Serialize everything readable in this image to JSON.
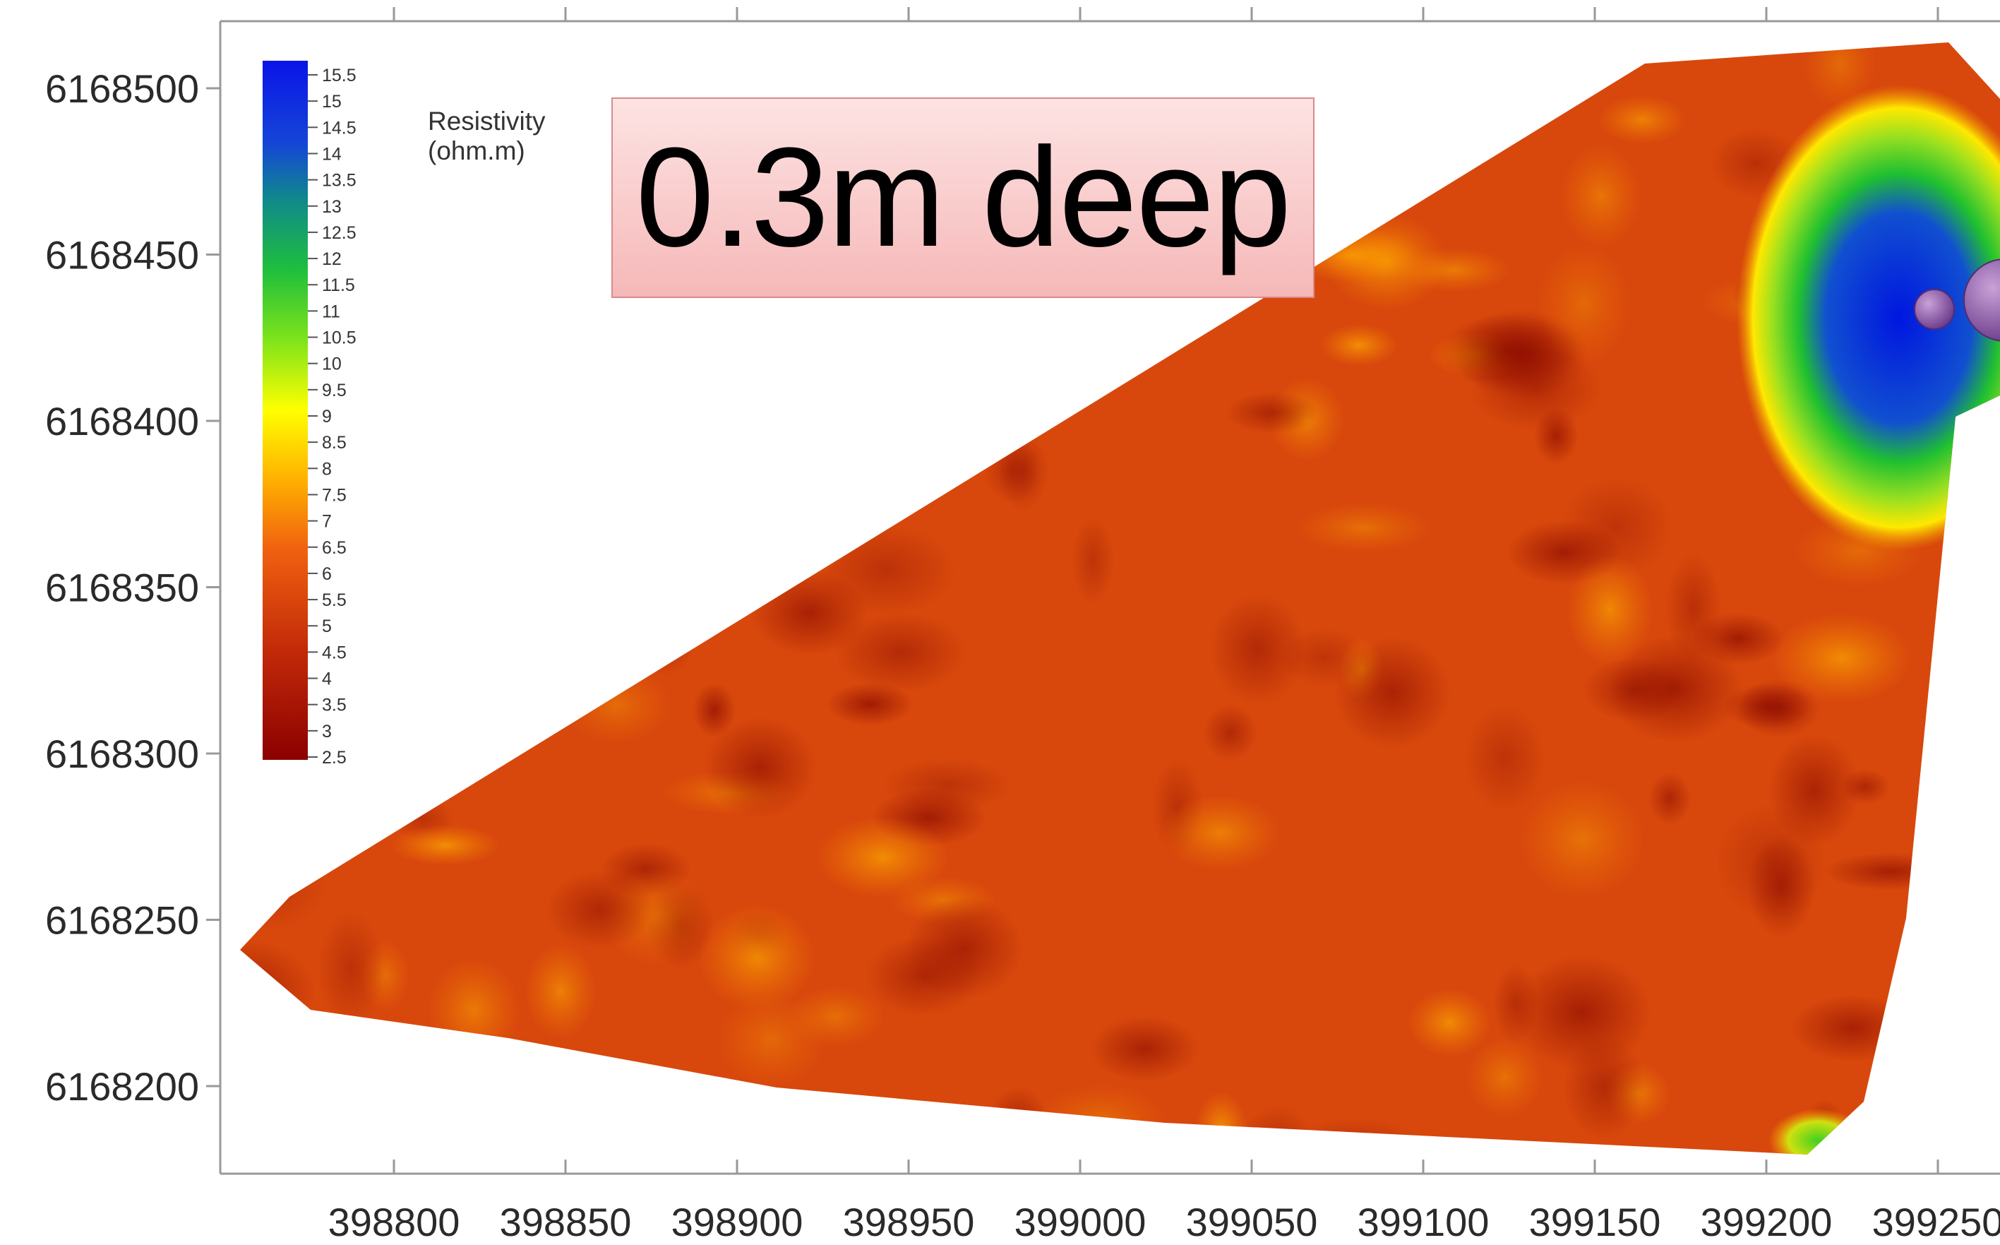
{
  "chart_data": {
    "type": "heatmap",
    "title": "0.3m deep",
    "legend_title": "Resistivity (ohm.m)",
    "legend_placement": "top-left",
    "colorbar_ticks": [
      "15.5",
      "15",
      "14.5",
      "14",
      "13.5",
      "13",
      "12.5",
      "12",
      "11.5",
      "11",
      "10.5",
      "10",
      "9.5",
      "9",
      "8.5",
      "8",
      "7.5",
      "7",
      "6.5",
      "6",
      "5.5",
      "5",
      "4.5",
      "4",
      "3.5",
      "3",
      "2.5"
    ],
    "colorbar_range": [
      2.5,
      15.5
    ],
    "x_ticks": [
      "398800",
      "398850",
      "398900",
      "398950",
      "399000",
      "399050",
      "399100",
      "399150",
      "399200",
      "399250"
    ],
    "y_ticks": [
      "6168500",
      "6168450",
      "6168400",
      "6168350",
      "6168300",
      "6168250",
      "6168200"
    ],
    "xlim": [
      398750,
      399270
    ],
    "ylim": [
      6168180,
      6168520
    ],
    "survey_region": {
      "background_resistivity": 6.5,
      "dominant_range": [
        4,
        8.5
      ],
      "high_resistivity_anomaly": {
        "x": 399235,
        "y": 6168430,
        "peak": 15.5
      },
      "minor_anomaly": {
        "x": 399215,
        "y": 6168185,
        "value": 11
      }
    },
    "grid": false,
    "colors": {
      "low": "#8b0000",
      "mid": "#e2570f",
      "high_mid": "#ffff00",
      "green": "#22cc22",
      "high": "#0019e6",
      "marker": "#8a5aa8"
    }
  }
}
